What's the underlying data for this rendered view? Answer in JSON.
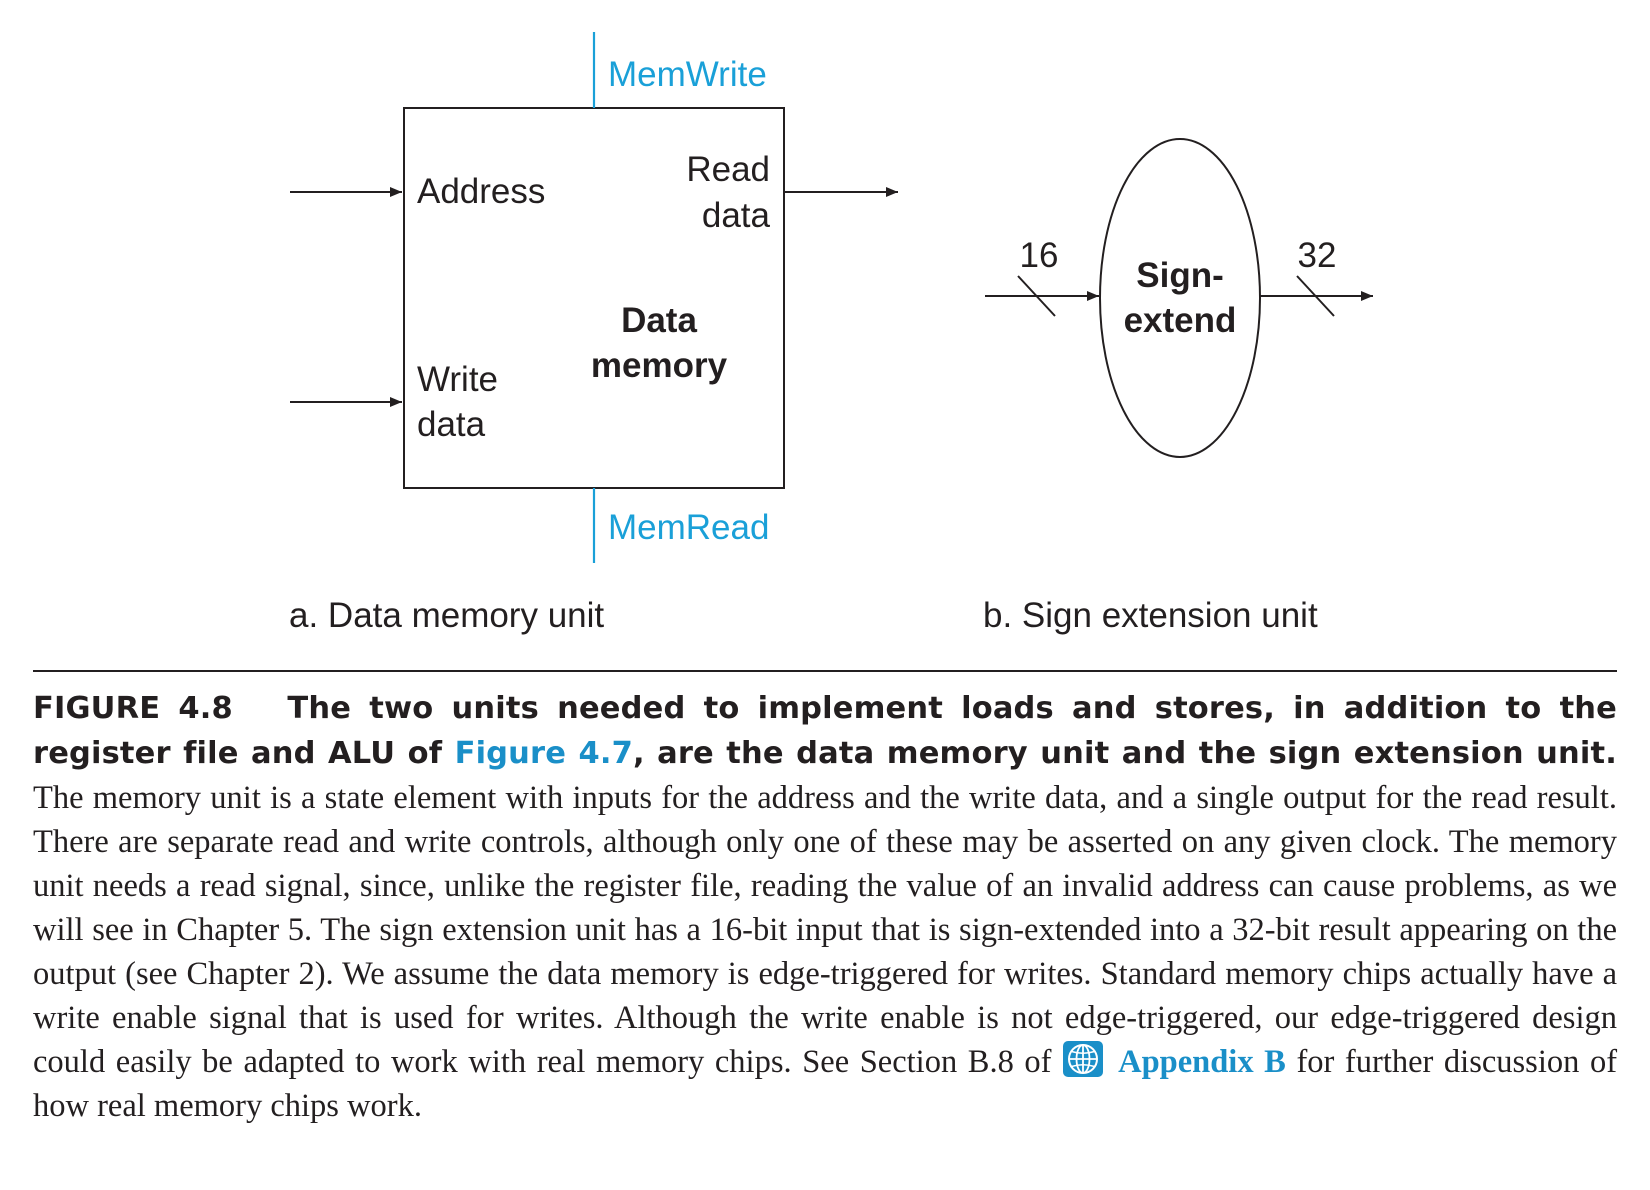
{
  "colors": {
    "ink": "#231f20",
    "control_signal": "#1aa0d8",
    "link": "#1a8fc8"
  },
  "diagram_a": {
    "control_top": "MemWrite",
    "control_bottom": "MemRead",
    "input_address": "Address",
    "input_write_1": "Write",
    "input_write_2": "data",
    "output_read_1": "Read",
    "output_read_2": "data",
    "unit_name_1": "Data",
    "unit_name_2": "memory",
    "subcaption": "a. Data memory unit"
  },
  "diagram_b": {
    "input_width": "16",
    "output_width": "32",
    "unit_name_1": "Sign-",
    "unit_name_2": "extend",
    "subcaption": "b. Sign extension unit"
  },
  "caption": {
    "label": "FIGURE 4.8",
    "title_part1": "The two units needed to implement loads and stores, in addition to the register file and ALU of",
    "title_link": "Figure 4.7",
    "title_part2": ", are the data memory unit and the sign extension unit.",
    "body_part1": "The memory unit is a state element with inputs for the address and the write data, and a single output for the read result. There are separate read and write controls, although only one of these may be asserted on any given clock. The memory unit needs a read signal, since, unlike the register file, reading the value of an invalid address can cause problems, as we will see in Chapter 5. The sign extension unit has a 16-bit input that is sign-extended into a 32-bit result appearing on the output (see Chapter 2). We assume the data memory is edge-triggered for writes. Standard memory chips actually have a write enable signal that is used for writes. Although the write enable is not edge-triggered, our edge-triggered design could easily be adapted to work with real memory chips. See Section B.8 of",
    "appendix_icon": "globe-icon",
    "appendix_link": "Appendix B",
    "body_part2": "for further discussion of how real memory chips work."
  }
}
